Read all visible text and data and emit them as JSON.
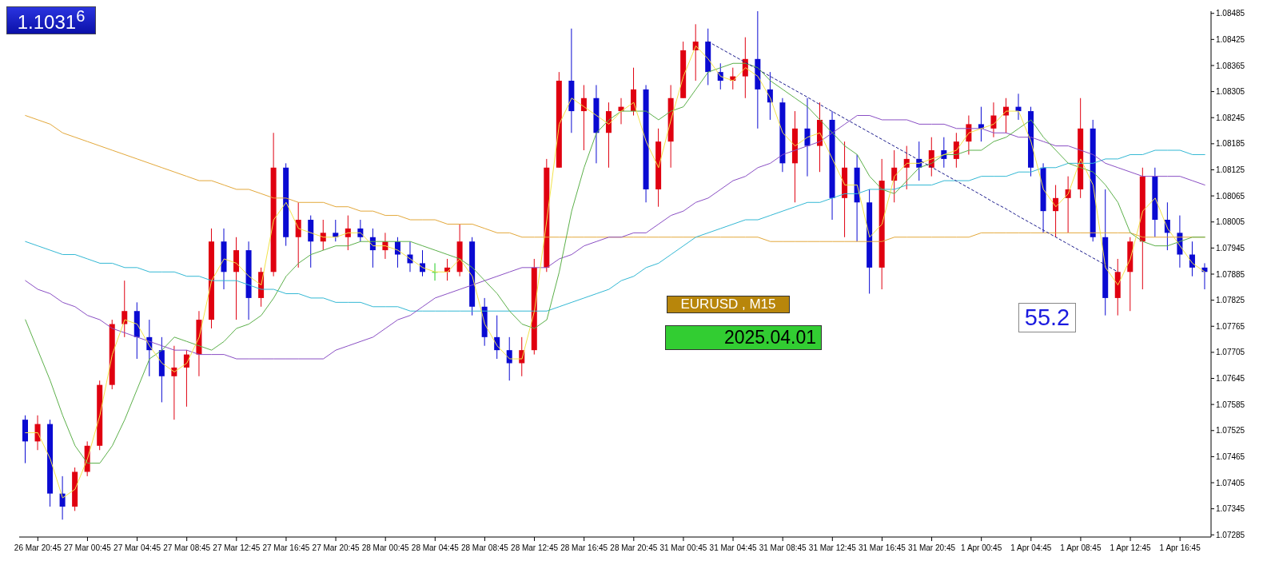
{
  "chart_data": {
    "type": "candlestick",
    "categories": [
      null,
      "26 Mar 20:45",
      null,
      null,
      null,
      "27 Mar 00:45",
      null,
      null,
      null,
      "27 Mar 04:45",
      null,
      null,
      null,
      "27 Mar 08:45",
      null,
      null,
      null,
      "27 Mar 12:45",
      null,
      null,
      null,
      "27 Mar 16:45",
      null,
      null,
      null,
      "27 Mar 20:45",
      null,
      null,
      null,
      "28 Mar 00:45",
      null,
      null,
      null,
      "28 Mar 04:45",
      null,
      null,
      null,
      "28 Mar 08:45",
      null,
      null,
      null,
      "28 Mar 12:45",
      null,
      null,
      null,
      "28 Mar 16:45",
      null,
      null,
      null,
      "28 Mar 20:45",
      null,
      null,
      null,
      "31 Mar 00:45",
      null,
      null,
      null,
      "31 Mar 04:45",
      null,
      null,
      null,
      "31 Mar 08:45",
      null,
      null,
      null,
      "31 Mar 12:45",
      null,
      null,
      null,
      "31 Mar 16:45",
      null,
      null,
      null,
      "31 Mar 20:45",
      null,
      null,
      null,
      "1 Apr 00:45",
      null,
      null,
      null,
      "1 Apr 04:45",
      null,
      null,
      null,
      "1 Apr 08:45",
      null,
      null,
      null,
      "1 Apr 12:45",
      null,
      null,
      null,
      "1 Apr 16:45",
      null,
      null
    ],
    "ohlc": [
      [
        1.0755,
        1.0756,
        1.0745,
        1.075
      ],
      [
        1.075,
        1.0756,
        1.0748,
        1.0754
      ],
      [
        1.0754,
        1.0755,
        1.0735,
        1.0738
      ],
      [
        1.0738,
        1.0742,
        1.0732,
        1.0735
      ],
      [
        1.0735,
        1.0744,
        1.0734,
        1.0743
      ],
      [
        1.0743,
        1.075,
        1.0742,
        1.0749
      ],
      [
        1.0749,
        1.0764,
        1.0748,
        1.0763
      ],
      [
        1.0763,
        1.0778,
        1.0762,
        1.0777
      ],
      [
        1.0777,
        1.0787,
        1.0774,
        1.078
      ],
      [
        1.078,
        1.0782,
        1.0769,
        1.0774
      ],
      [
        1.0774,
        1.0778,
        1.0765,
        1.0771
      ],
      [
        1.0771,
        1.0774,
        1.0759,
        1.0765
      ],
      [
        1.0765,
        1.0772,
        1.0755,
        1.0767
      ],
      [
        1.0767,
        1.0771,
        1.0758,
        1.077
      ],
      [
        1.077,
        1.078,
        1.0765,
        1.0778
      ],
      [
        1.0778,
        1.0799,
        1.0776,
        1.0796
      ],
      [
        1.0796,
        1.0799,
        1.0785,
        1.0789
      ],
      [
        1.0789,
        1.0797,
        1.0778,
        1.0794
      ],
      [
        1.0794,
        1.0796,
        1.0778,
        1.0783
      ],
      [
        1.0783,
        1.079,
        1.0781,
        1.0789
      ],
      [
        1.0789,
        1.0821,
        1.0788,
        1.0813
      ],
      [
        1.0813,
        1.0814,
        1.0795,
        1.0797
      ],
      [
        1.0797,
        1.0805,
        1.079,
        1.0801
      ],
      [
        1.0801,
        1.0802,
        1.079,
        1.0796
      ],
      [
        1.0796,
        1.0801,
        1.0794,
        1.0798
      ],
      [
        1.0798,
        1.0801,
        1.0796,
        1.0797
      ],
      [
        1.0797,
        1.0802,
        1.0794,
        1.0799
      ],
      [
        1.0799,
        1.0801,
        1.0796,
        1.0797
      ],
      [
        1.0797,
        1.0799,
        1.079,
        1.0794
      ],
      [
        1.0794,
        1.0798,
        1.0792,
        1.0796
      ],
      [
        1.0796,
        1.0797,
        1.079,
        1.0793
      ],
      [
        1.0793,
        1.0796,
        1.0789,
        1.0791
      ],
      [
        1.0791,
        1.0794,
        1.0788,
        1.0789
      ],
      [
        1.0789,
        1.0791,
        1.0787,
        1.0789
      ],
      [
        1.0789,
        1.0792,
        1.0787,
        1.079
      ],
      [
        1.0789,
        1.08,
        1.0788,
        1.0796
      ],
      [
        1.0796,
        1.0797,
        1.0779,
        1.0781
      ],
      [
        1.0781,
        1.0783,
        1.0772,
        1.0774
      ],
      [
        1.0774,
        1.0779,
        1.0769,
        1.0771
      ],
      [
        1.0771,
        1.0774,
        1.0764,
        1.0768
      ],
      [
        1.0768,
        1.0774,
        1.0765,
        1.0771
      ],
      [
        1.0771,
        1.0792,
        1.077,
        1.079
      ],
      [
        1.079,
        1.0815,
        1.0789,
        1.0813
      ],
      [
        1.0813,
        1.0835,
        1.0813,
        1.0833
      ],
      [
        1.0833,
        1.0845,
        1.0821,
        1.0826
      ],
      [
        1.0826,
        1.0832,
        1.0817,
        1.0829
      ],
      [
        1.0829,
        1.0832,
        1.0814,
        1.0821
      ],
      [
        1.0821,
        1.0828,
        1.0813,
        1.0826
      ],
      [
        1.0826,
        1.0829,
        1.0823,
        1.0827
      ],
      [
        1.0826,
        1.0836,
        1.0825,
        1.0831
      ],
      [
        1.0831,
        1.0832,
        1.0805,
        1.0808
      ],
      [
        1.0808,
        1.0822,
        1.0804,
        1.0819
      ],
      [
        1.0819,
        1.0832,
        1.0813,
        1.0829
      ],
      [
        1.0829,
        1.0842,
        1.0829,
        1.084
      ],
      [
        1.084,
        1.0846,
        1.0833,
        1.0842
      ],
      [
        1.0842,
        1.0845,
        1.0832,
        1.0835
      ],
      [
        1.0835,
        1.0837,
        1.0831,
        1.0833
      ],
      [
        1.0833,
        1.0836,
        1.0831,
        1.0834
      ],
      [
        1.0834,
        1.0843,
        1.0829,
        1.0838
      ],
      [
        1.0838,
        1.0849,
        1.0822,
        1.0831
      ],
      [
        1.0831,
        1.0835,
        1.0824,
        1.0828
      ],
      [
        1.0828,
        1.0829,
        1.0812,
        1.0814
      ],
      [
        1.0814,
        1.0826,
        1.0805,
        1.0822
      ],
      [
        1.0822,
        1.0829,
        1.0811,
        1.0818
      ],
      [
        1.0818,
        1.0828,
        1.0812,
        1.0824
      ],
      [
        1.0824,
        1.0826,
        1.0801,
        1.0806
      ],
      [
        1.0806,
        1.0819,
        1.0797,
        1.0813
      ],
      [
        1.0813,
        1.0816,
        1.0796,
        1.0805
      ],
      [
        1.0805,
        1.0808,
        1.0784,
        1.079
      ],
      [
        1.079,
        1.0815,
        1.0785,
        1.081
      ],
      [
        1.081,
        1.0817,
        1.0805,
        1.0813
      ],
      [
        1.0813,
        1.0818,
        1.0808,
        1.0815
      ],
      [
        1.0815,
        1.0819,
        1.081,
        1.0813
      ],
      [
        1.0813,
        1.082,
        1.0811,
        1.0817
      ],
      [
        1.0817,
        1.082,
        1.0813,
        1.0815
      ],
      [
        1.0815,
        1.0821,
        1.0813,
        1.0819
      ],
      [
        1.0819,
        1.0825,
        1.0816,
        1.0823
      ],
      [
        1.0823,
        1.0827,
        1.0819,
        1.0822
      ],
      [
        1.0822,
        1.0828,
        1.082,
        1.0825
      ],
      [
        1.0825,
        1.0829,
        1.0821,
        1.0827
      ],
      [
        1.0827,
        1.083,
        1.0824,
        1.0826
      ],
      [
        1.0826,
        1.0827,
        1.0811,
        1.0813
      ],
      [
        1.0813,
        1.0814,
        1.0798,
        1.0803
      ],
      [
        1.0803,
        1.0809,
        1.0797,
        1.0806
      ],
      [
        1.0806,
        1.0811,
        1.0798,
        1.0808
      ],
      [
        1.0808,
        1.0829,
        1.0806,
        1.0822
      ],
      [
        1.0822,
        1.0824,
        1.0796,
        1.0797
      ],
      [
        1.0797,
        1.0808,
        1.0779,
        1.0783
      ],
      [
        1.0783,
        1.0792,
        1.0779,
        1.0789
      ],
      [
        1.0789,
        1.0797,
        1.078,
        1.0796
      ],
      [
        1.0796,
        1.0813,
        1.0785,
        1.0811
      ],
      [
        1.0811,
        1.0813,
        1.0797,
        1.0801
      ],
      [
        1.0801,
        1.0805,
        1.0794,
        1.0798
      ],
      [
        1.0798,
        1.0802,
        1.079,
        1.0793
      ],
      [
        1.0793,
        1.0796,
        1.0788,
        1.079
      ],
      [
        1.079,
        1.0791,
        1.0785,
        1.0789
      ]
    ],
    "colors": [
      "#0a0ad2",
      "#e00010",
      "#0a0ad2",
      "#0a0ad2",
      "#e00010",
      "#e00010",
      "#e00010",
      "#e00010",
      "#e00010",
      "#0a0ad2",
      "#0a0ad2",
      "#0a0ad2",
      "#e00010",
      "#e00010",
      "#e00010",
      "#e00010",
      "#0a0ad2",
      "#e00010",
      "#0a0ad2",
      "#e00010",
      "#e00010",
      "#0a0ad2",
      "#e00010",
      "#0a0ad2",
      "#e00010",
      "#0a0ad2",
      "#e00010",
      "#0a0ad2",
      "#0a0ad2",
      "#e00010",
      "#0a0ad2",
      "#0a0ad2",
      "#0a0ad2",
      "#22cc22",
      "#e00010",
      "#e00010",
      "#0a0ad2",
      "#0a0ad2",
      "#0a0ad2",
      "#0a0ad2",
      "#e00010",
      "#e00010",
      "#e00010",
      "#e00010",
      "#0a0ad2",
      "#e00010",
      "#0a0ad2",
      "#e00010",
      "#e00010",
      "#e00010",
      "#0a0ad2",
      "#e00010",
      "#e00010",
      "#e00010",
      "#e00010",
      "#0a0ad2",
      "#0a0ad2",
      "#e00010",
      "#e00010",
      "#0a0ad2",
      "#0a0ad2",
      "#0a0ad2",
      "#e00010",
      "#0a0ad2",
      "#e00010",
      "#0a0ad2",
      "#e00010",
      "#0a0ad2",
      "#0a0ad2",
      "#e00010",
      "#e00010",
      "#e00010",
      "#0a0ad2",
      "#e00010",
      "#0a0ad2",
      "#e00010",
      "#e00010",
      "#0a0ad2",
      "#e00010",
      "#e00010",
      "#0a0ad2",
      "#0a0ad2",
      "#0a0ad2",
      "#e00010",
      "#e00010",
      "#e00010",
      "#0a0ad2",
      "#0a0ad2",
      "#e00010",
      "#e00010",
      "#e00010",
      "#0a0ad2",
      "#0a0ad2",
      "#0a0ad2",
      "#0a0ad2",
      "#0a0ad2"
    ],
    "series": [
      {
        "type": "line",
        "color": "#e3a83a",
        "values": [
          1.0825,
          1.0824,
          1.0823,
          1.0821,
          1.082,
          1.0819,
          1.0818,
          1.0817,
          1.0816,
          1.0815,
          1.0814,
          1.0813,
          1.0812,
          1.0811,
          1.081,
          1.081,
          1.0809,
          1.0808,
          1.0808,
          1.0807,
          1.0806,
          1.0806,
          1.0805,
          1.0805,
          1.0805,
          1.0804,
          1.0804,
          1.0803,
          1.0803,
          1.0802,
          1.0802,
          1.0801,
          1.0801,
          1.0801,
          1.08,
          1.08,
          1.08,
          1.0799,
          1.0798,
          1.0798,
          1.0797,
          1.0797,
          1.0797,
          1.0797,
          1.0797,
          1.0797,
          1.0797,
          1.0797,
          1.0797,
          1.0797,
          1.0797,
          1.0797,
          1.0797,
          1.0797,
          1.0797,
          1.0797,
          1.0797,
          1.0797,
          1.0797,
          1.0797,
          1.0796,
          1.0796,
          1.0796,
          1.0796,
          1.0796,
          1.0796,
          1.0796,
          1.0796,
          1.0796,
          1.0796,
          1.0797,
          1.0797,
          1.0797,
          1.0797,
          1.0797,
          1.0797,
          1.0797,
          1.0798,
          1.0798,
          1.0798,
          1.0798,
          1.0798,
          1.0798,
          1.0798,
          1.0798,
          1.0798,
          1.0798,
          1.0798,
          1.0798,
          1.0798,
          1.0797,
          1.0797,
          1.0797,
          1.0797,
          1.0797,
          1.0797
        ]
      },
      {
        "type": "line",
        "color": "#33b8d4",
        "values": [
          1.0796,
          1.0795,
          1.0794,
          1.0793,
          1.0793,
          1.0792,
          1.0791,
          1.0791,
          1.079,
          1.079,
          1.0789,
          1.0789,
          1.0789,
          1.0788,
          1.0788,
          1.0787,
          1.0787,
          1.0787,
          1.0786,
          1.0785,
          1.0785,
          1.0784,
          1.0784,
          1.0783,
          1.0783,
          1.0782,
          1.0782,
          1.0782,
          1.0781,
          1.0781,
          1.0781,
          1.078,
          1.078,
          1.078,
          1.078,
          1.078,
          1.078,
          1.078,
          1.078,
          1.078,
          1.078,
          1.078,
          1.078,
          1.0781,
          1.0782,
          1.0783,
          1.0784,
          1.0785,
          1.0787,
          1.0788,
          1.079,
          1.0791,
          1.0793,
          1.0795,
          1.0797,
          1.0798,
          1.0799,
          1.08,
          1.0801,
          1.0801,
          1.0802,
          1.0803,
          1.0804,
          1.0805,
          1.0805,
          1.0806,
          1.0807,
          1.0807,
          1.0808,
          1.0808,
          1.0808,
          1.0809,
          1.0809,
          1.0809,
          1.081,
          1.081,
          1.081,
          1.0811,
          1.0811,
          1.0811,
          1.0812,
          1.0812,
          1.0813,
          1.0813,
          1.0814,
          1.0814,
          1.0814,
          1.0815,
          1.0815,
          1.0816,
          1.0816,
          1.0817,
          1.0817,
          1.0817,
          1.0816,
          1.0816
        ]
      },
      {
        "type": "line",
        "color": "#8a4fc4",
        "values": [
          1.0787,
          1.0785,
          1.0784,
          1.0782,
          1.0781,
          1.0779,
          1.0778,
          1.0776,
          1.0775,
          1.0774,
          1.0773,
          1.0772,
          1.0771,
          1.0771,
          1.077,
          1.077,
          1.077,
          1.0769,
          1.0769,
          1.0769,
          1.0769,
          1.0769,
          1.0769,
          1.0769,
          1.0769,
          1.0771,
          1.0772,
          1.0773,
          1.0774,
          1.0776,
          1.0778,
          1.0779,
          1.0781,
          1.0783,
          1.0784,
          1.0785,
          1.0786,
          1.0787,
          1.0788,
          1.0789,
          1.079,
          1.079,
          1.079,
          1.0792,
          1.0793,
          1.0795,
          1.0796,
          1.0797,
          1.0797,
          1.0798,
          1.0798,
          1.08,
          1.0802,
          1.0803,
          1.0805,
          1.0806,
          1.0808,
          1.081,
          1.0811,
          1.0813,
          1.0814,
          1.0816,
          1.0817,
          1.0818,
          1.0819,
          1.0821,
          1.0823,
          1.0825,
          1.0825,
          1.0824,
          1.0824,
          1.0824,
          1.0823,
          1.0823,
          1.0823,
          1.0822,
          1.0822,
          1.0822,
          1.0821,
          1.0821,
          1.082,
          1.082,
          1.0819,
          1.0818,
          1.0818,
          1.0817,
          1.0816,
          1.0814,
          1.0813,
          1.0812,
          1.0811,
          1.0811,
          1.0811,
          1.0811,
          1.081,
          1.0809
        ]
      },
      {
        "type": "line",
        "color": "#5cb04a",
        "values": [
          1.0778,
          1.0771,
          1.0764,
          1.0756,
          1.0749,
          1.0745,
          1.0745,
          1.0749,
          1.0755,
          1.0762,
          1.0769,
          1.0771,
          1.0774,
          1.0773,
          1.0772,
          1.0771,
          1.0773,
          1.0776,
          1.0777,
          1.0779,
          1.0783,
          1.0788,
          1.0791,
          1.0793,
          1.0794,
          1.0795,
          1.0795,
          1.0796,
          1.0796,
          1.0796,
          1.0796,
          1.0796,
          1.0795,
          1.0794,
          1.0793,
          1.0792,
          1.079,
          1.0787,
          1.0784,
          1.078,
          1.0777,
          1.0776,
          1.0778,
          1.0789,
          1.0803,
          1.0813,
          1.0821,
          1.0824,
          1.0826,
          1.0826,
          1.0826,
          1.0824,
          1.0826,
          1.0827,
          1.0831,
          1.0835,
          1.0836,
          1.0837,
          1.0837,
          1.0836,
          1.0833,
          1.0831,
          1.0829,
          1.0827,
          1.0824,
          1.0821,
          1.0818,
          1.0816,
          1.0811,
          1.0808,
          1.0807,
          1.081,
          1.0813,
          1.0814,
          1.0816,
          1.0816,
          1.0817,
          1.0817,
          1.0819,
          1.082,
          1.0822,
          1.0824,
          1.082,
          1.0817,
          1.0814,
          1.0813,
          1.0812,
          1.0809,
          1.0805,
          1.0798,
          1.0796,
          1.0795,
          1.0795,
          1.0796,
          1.0797,
          1.0797
        ]
      },
      {
        "type": "line",
        "color": "#f2e34a",
        "values": [
          1.0752,
          1.0752,
          1.0746,
          1.0737,
          1.0739,
          1.0746,
          1.0756,
          1.077,
          1.0778,
          1.0777,
          1.0772,
          1.0768,
          1.0766,
          1.0768,
          1.0774,
          1.0787,
          1.0792,
          1.0791,
          1.0788,
          1.0786,
          1.0801,
          1.0805,
          1.0799,
          1.0798,
          1.0797,
          1.0797,
          1.0798,
          1.0798,
          1.0795,
          1.0795,
          1.0794,
          1.0792,
          1.079,
          1.0789,
          1.0789,
          1.0792,
          1.0788,
          1.0777,
          1.0772,
          1.0769,
          1.0769,
          1.078,
          1.0801,
          1.0823,
          1.0829,
          1.0827,
          1.0825,
          1.0823,
          1.0826,
          1.0828,
          1.0819,
          1.0813,
          1.0824,
          1.0834,
          1.0841,
          1.0838,
          1.0834,
          1.0833,
          1.0836,
          1.0834,
          1.0829,
          1.0821,
          1.0818,
          1.082,
          1.0821,
          1.0815,
          1.0809,
          1.0809,
          1.0797,
          1.08,
          1.0811,
          1.0814,
          1.0814,
          1.0815,
          1.0816,
          1.0817,
          1.0821,
          1.0822,
          1.0823,
          1.0826,
          1.0826,
          1.0819,
          1.0808,
          1.0804,
          1.0807,
          1.0815,
          1.0809,
          1.079,
          1.0786,
          1.0792,
          1.0803,
          1.0806,
          1.0799,
          1.0795,
          1.0791,
          1.0789
        ]
      },
      {
        "type": "line",
        "color": "#1a1a8c",
        "line_style": "dashed",
        "values": [
          null,
          null,
          null,
          null,
          null,
          null,
          null,
          null,
          null,
          null,
          null,
          null,
          null,
          null,
          null,
          null,
          null,
          null,
          null,
          null,
          null,
          null,
          null,
          null,
          null,
          null,
          null,
          null,
          null,
          null,
          null,
          null,
          null,
          null,
          null,
          null,
          null,
          null,
          null,
          null,
          null,
          null,
          null,
          null,
          null,
          null,
          null,
          null,
          null,
          null,
          null,
          null,
          null,
          null,
          null,
          1.0842,
          1.08404,
          1.08388,
          1.08372,
          1.08356,
          1.0834,
          1.08324,
          1.08308,
          1.08292,
          1.08275,
          1.08259,
          1.08243,
          1.08227,
          1.08211,
          1.08195,
          1.08179,
          1.08163,
          1.08147,
          1.08131,
          1.08115,
          1.08099,
          1.08083,
          1.08067,
          1.0805,
          1.08035,
          1.08018,
          1.08002,
          1.07986,
          1.0797,
          1.07954,
          1.07938,
          1.07922,
          1.07906,
          1.0789,
          null,
          null,
          null,
          null,
          null,
          null,
          null
        ]
      }
    ],
    "ylim": [
      1.0728,
      1.0849
    ],
    "yticks": [
      1.07285,
      1.07345,
      1.07405,
      1.07465,
      1.07525,
      1.07585,
      1.07645,
      1.07705,
      1.07765,
      1.07825,
      1.07885,
      1.07945,
      1.08005,
      1.08065,
      1.08125,
      1.08185,
      1.08245,
      1.08305,
      1.08365,
      1.08425,
      1.08485
    ],
    "annotations": [
      "1.1031$^{6}$",
      "EURUSD , M15",
      "2025.04.01",
      "55.2"
    ]
  }
}
